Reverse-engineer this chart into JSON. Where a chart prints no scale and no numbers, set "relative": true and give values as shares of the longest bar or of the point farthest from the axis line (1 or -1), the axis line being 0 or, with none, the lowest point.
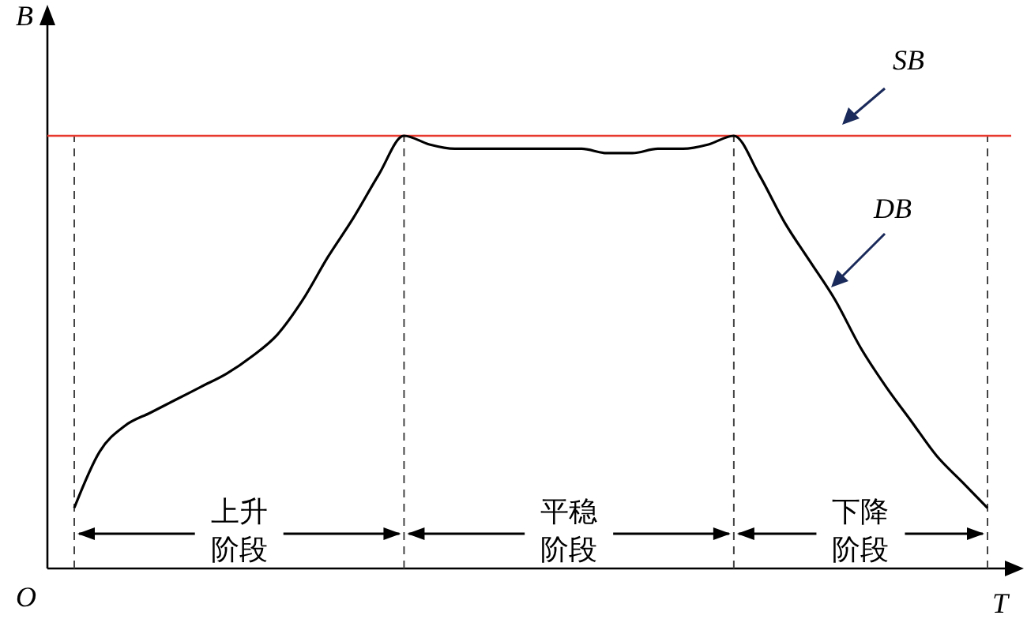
{
  "chart_data": {
    "type": "line",
    "relative": true,
    "xlabel": "T",
    "ylabel": "B",
    "categories": [
      null,
      null,
      null,
      null,
      null,
      null,
      null,
      null,
      null,
      null,
      null,
      null,
      null,
      null,
      null,
      null,
      null,
      null,
      null,
      null,
      null,
      null,
      null,
      null,
      null,
      null,
      null,
      null,
      null,
      null,
      null,
      null,
      null,
      null,
      null,
      null,
      null
    ],
    "series": [
      {
        "name": "DB",
        "color": "#000000",
        "values": [
          0.14,
          0.27,
          0.33,
          0.36,
          0.39,
          0.42,
          0.45,
          0.49,
          0.54,
          0.62,
          0.72,
          0.81,
          0.91,
          1.0,
          0.98,
          0.97,
          0.97,
          0.97,
          0.97,
          0.97,
          0.97,
          0.96,
          0.96,
          0.97,
          0.97,
          0.98,
          1.0,
          0.91,
          0.8,
          0.71,
          0.62,
          0.51,
          0.42,
          0.34,
          0.26,
          0.2,
          0.14
        ]
      }
    ],
    "ref_lines": [
      {
        "axis": "y",
        "value": 1,
        "label": "SB",
        "color": "#e8392f",
        "line_style": "solid"
      }
    ],
    "annotations": [
      "O",
      "上升阶段",
      "平稳阶段",
      "下降阶段"
    ],
    "grid": "x",
    "legend": false,
    "marker": "none",
    "line_style": "solid"
  }
}
